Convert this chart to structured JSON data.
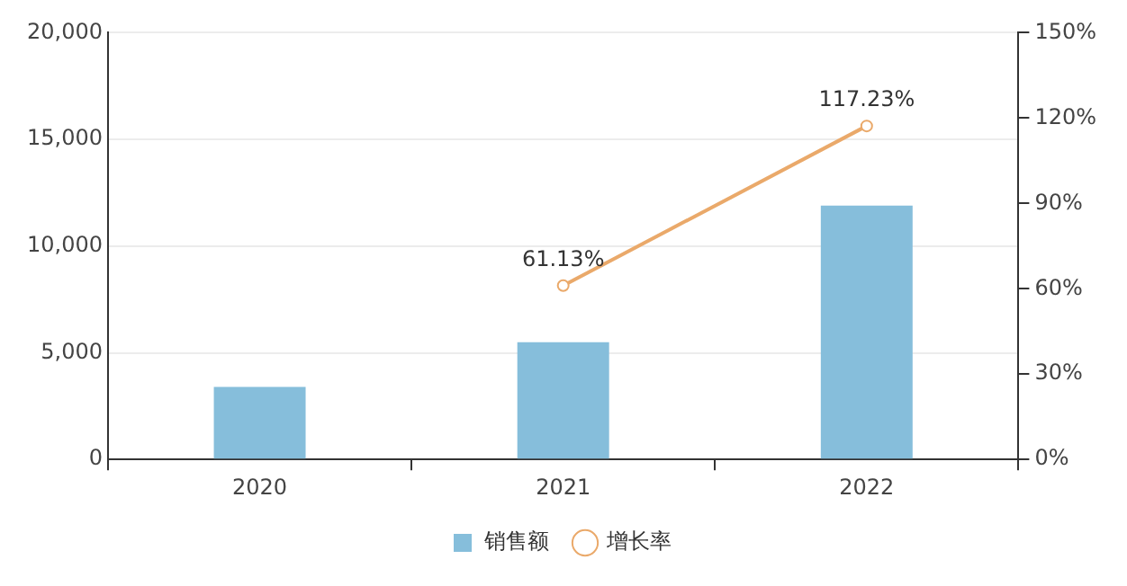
{
  "chart_data": {
    "type": "bar",
    "categories": [
      "2020",
      "2021",
      "2022"
    ],
    "series": [
      {
        "name": "销售额",
        "color": "#86bedb",
        "values": [
          3400,
          5500,
          11900
        ]
      },
      {
        "name": "增长率",
        "type": "line",
        "axis": "y2",
        "color": "#eaa96a",
        "values": [
          null,
          61.13,
          117.23
        ],
        "value_labels": [
          null,
          "61.13%",
          "117.23%"
        ]
      }
    ],
    "ylim": [
      0,
      20000
    ],
    "yticks": [
      0,
      {
        "value": 5000,
        "label": "5,000"
      },
      {
        "value": 10000,
        "label": "10,000"
      },
      {
        "value": 15000,
        "label": "15,000"
      },
      {
        "value": 20000,
        "label": "20,000"
      }
    ],
    "y2lim": [
      0,
      150
    ],
    "y2ticks": [
      {
        "value": 0,
        "label": "0%"
      },
      {
        "value": 30,
        "label": "30%"
      },
      {
        "value": 60,
        "label": "60%"
      },
      {
        "value": 90,
        "label": "90%"
      },
      {
        "value": 120,
        "label": "120%"
      },
      {
        "value": 150,
        "label": "150%"
      }
    ],
    "grid": "y",
    "legend": "bottom",
    "marker": "circle",
    "line_style": "solid"
  }
}
